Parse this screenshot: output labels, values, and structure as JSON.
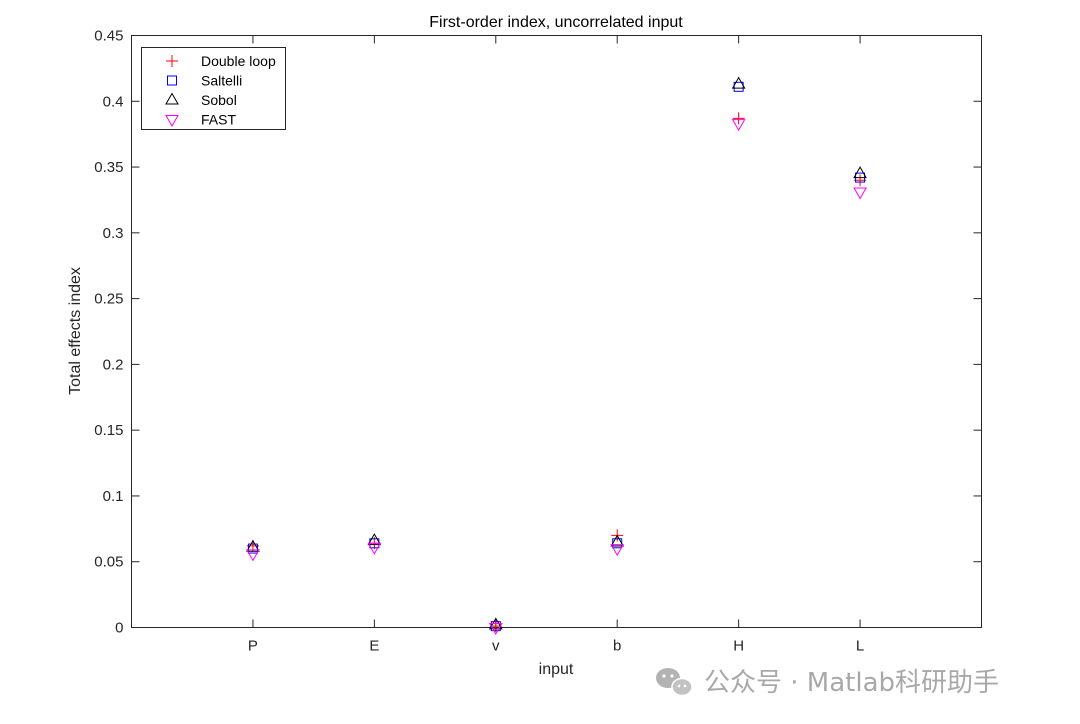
{
  "chart_data": {
    "type": "scatter",
    "title": "First-order index, uncorrelated input",
    "xlabel": "input",
    "ylabel": "Total effects index",
    "categories": [
      "P",
      "E",
      "v",
      "b",
      "H",
      "L"
    ],
    "ylim": [
      0,
      0.45
    ],
    "yticks": [
      0,
      0.05,
      0.1,
      0.15,
      0.2,
      0.25,
      0.3,
      0.35,
      0.4,
      0.45
    ],
    "ytick_labels": [
      "0",
      "0.05",
      "0.1",
      "0.15",
      "0.2",
      "0.25",
      "0.3",
      "0.35",
      "0.4",
      "0.45"
    ],
    "grid": false,
    "legend_position": "top-left",
    "series": [
      {
        "name": "Double loop",
        "marker": "plus",
        "color": "#ff0000",
        "values": [
          0.062,
          0.064,
          0.001,
          0.07,
          0.387,
          0.34
        ]
      },
      {
        "name": "Saltelli",
        "marker": "square",
        "color": "#0000ff",
        "values": [
          0.06,
          0.064,
          0.001,
          0.064,
          0.411,
          0.342
        ]
      },
      {
        "name": "Sobol",
        "marker": "triangle-up",
        "color": "#000000",
        "values": [
          0.061,
          0.066,
          0.002,
          0.065,
          0.413,
          0.345
        ]
      },
      {
        "name": "FAST",
        "marker": "triangle-down",
        "color": "#ff00ff",
        "values": [
          0.056,
          0.061,
          0.0,
          0.06,
          0.383,
          0.331
        ]
      }
    ]
  },
  "watermark": {
    "text": "公众号 · Matlab科研助手",
    "icon": "wechat-icon"
  }
}
